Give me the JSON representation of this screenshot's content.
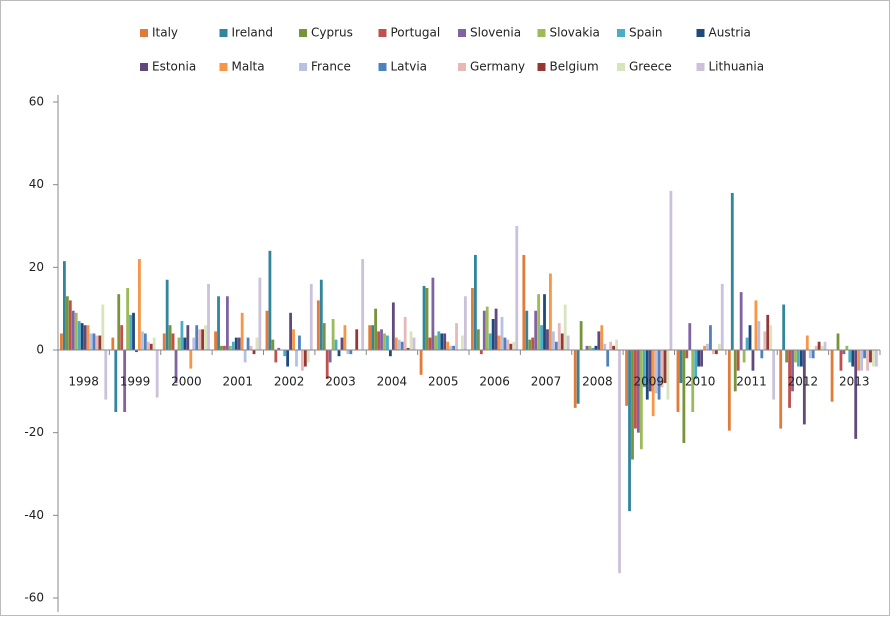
{
  "chart_data": {
    "type": "bar",
    "categories": [
      "1998",
      "1999",
      "2000",
      "2001",
      "2002",
      "2003",
      "2004",
      "2005",
      "2006",
      "2007",
      "2008",
      "2009",
      "2010",
      "2011",
      "2012",
      "2013"
    ],
    "ylim": [
      -60,
      60
    ],
    "yticks": [
      -60,
      -40,
      -20,
      0,
      20,
      40,
      60
    ],
    "grid": false,
    "series": [
      {
        "name": "Italy",
        "color": "#e07b39",
        "values": [
          4,
          3,
          4,
          4.5,
          9.5,
          12,
          6,
          -6,
          15,
          23,
          -14,
          -13.5,
          -15,
          -19.5,
          -19,
          -12.5
        ]
      },
      {
        "name": "Ireland",
        "color": "#31859c",
        "values": [
          21.5,
          -15,
          17,
          13,
          24,
          17,
          6,
          15.5,
          23,
          9.5,
          -13,
          -39,
          -8,
          38,
          11,
          0
        ]
      },
      {
        "name": "Cyprus",
        "color": "#77933c",
        "values": [
          13,
          13.5,
          6,
          1,
          2.5,
          6.5,
          10,
          15,
          5,
          2.5,
          7,
          -26.5,
          -22.5,
          -10,
          -3,
          4
        ]
      },
      {
        "name": "Portugal",
        "color": "#c0504d",
        "values": [
          12,
          6,
          4,
          1,
          -3,
          -7,
          4.5,
          3,
          -1,
          3,
          0,
          -19,
          -2,
          -5,
          -14,
          -5
        ]
      },
      {
        "name": "Slovenia",
        "color": "#8064a2",
        "values": [
          9.5,
          -15,
          -8,
          13,
          0.5,
          -3,
          5,
          17.5,
          9.5,
          9.5,
          1,
          -20,
          6.5,
          14,
          -10,
          -1
        ]
      },
      {
        "name": "Slovakia",
        "color": "#9bbb59",
        "values": [
          9,
          15,
          3,
          1,
          0,
          7.5,
          4,
          3.5,
          10.5,
          13.5,
          1,
          -24,
          -15,
          -3,
          -3,
          1
        ]
      },
      {
        "name": "Spain",
        "color": "#4bacc6",
        "values": [
          7,
          8.5,
          7,
          2,
          -1.5,
          2.5,
          3.5,
          4.5,
          4,
          6,
          0.5,
          -9,
          -7,
          3,
          -4,
          -3
        ]
      },
      {
        "name": "Austria",
        "color": "#1f497d",
        "values": [
          6.5,
          9,
          3,
          3,
          -4,
          -1.5,
          -1.5,
          4,
          7.5,
          13.5,
          1,
          -12,
          -4,
          6,
          -4,
          -4
        ]
      },
      {
        "name": "Estonia",
        "color": "#604a7b",
        "values": [
          6,
          -0.5,
          6,
          3,
          9,
          3,
          11.5,
          4,
          10,
          5,
          4.5,
          -10,
          -4,
          -5,
          -18,
          -21.5
        ]
      },
      {
        "name": "Malta",
        "color": "#f79646",
        "values": [
          6,
          22,
          -4.5,
          9,
          5,
          6,
          3,
          2,
          3.5,
          18.5,
          6,
          -16,
          1,
          12,
          3.5,
          -5
        ]
      },
      {
        "name": "France",
        "color": "#b9c0e4",
        "values": [
          4,
          4.5,
          3,
          -3,
          -4,
          -1,
          2.5,
          1,
          8,
          4.5,
          1.5,
          -10.5,
          1.5,
          7,
          -2,
          -5
        ]
      },
      {
        "name": "Latvia",
        "color": "#4f81bd",
        "values": [
          4,
          4,
          6,
          3,
          3.5,
          -1,
          2,
          1,
          3,
          2,
          -4,
          -12,
          6,
          -2,
          -2,
          -2
        ]
      },
      {
        "name": "Germany",
        "color": "#e6b9b8",
        "values": [
          3.5,
          2,
          5,
          1,
          -5,
          0,
          8,
          6.5,
          2.5,
          6.5,
          2,
          -9,
          -1,
          4.5,
          1,
          -5
        ]
      },
      {
        "name": "Belgium",
        "color": "#953735",
        "values": [
          3.5,
          1.5,
          5,
          -1,
          -4,
          5,
          0.5,
          0,
          1.5,
          4,
          1,
          -8,
          -1,
          8.5,
          2,
          -3
        ]
      },
      {
        "name": "Greece",
        "color": "#d7e4bd",
        "values": [
          11,
          3,
          6,
          3,
          -3,
          0,
          4.5,
          3.5,
          2,
          11,
          2.5,
          -12,
          1.5,
          6,
          1,
          -4
        ]
      },
      {
        "name": "Lithuania",
        "color": "#ccc1da",
        "values": [
          -12,
          -11.5,
          16,
          17.5,
          16,
          22,
          3,
          13,
          30,
          3.5,
          -54,
          38.5,
          16,
          -12,
          2,
          -4
        ]
      }
    ]
  }
}
